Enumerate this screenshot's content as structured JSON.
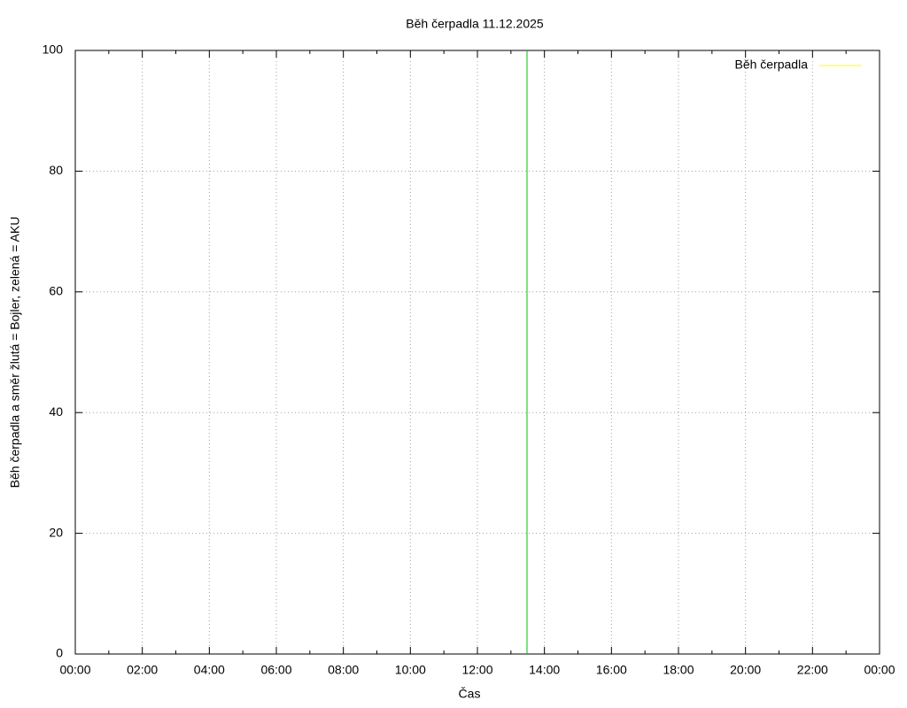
{
  "chart_data": {
    "type": "line",
    "title": "Běh čerpadla 11.12.2025",
    "xlabel": "Čas",
    "ylabel": "Běh čerpadla a směr žlutá = Bojler, zelená = AKU",
    "xlim": [
      0,
      24
    ],
    "ylim": [
      0,
      100
    ],
    "xticks": [
      {
        "value": 0,
        "label": "00:00"
      },
      {
        "value": 2,
        "label": "02:00"
      },
      {
        "value": 4,
        "label": "04:00"
      },
      {
        "value": 6,
        "label": "06:00"
      },
      {
        "value": 8,
        "label": "08:00"
      },
      {
        "value": 10,
        "label": "10:00"
      },
      {
        "value": 12,
        "label": "12:00"
      },
      {
        "value": 14,
        "label": "14:00"
      },
      {
        "value": 16,
        "label": "16:00"
      },
      {
        "value": 18,
        "label": "18:00"
      },
      {
        "value": 20,
        "label": "20:00"
      },
      {
        "value": 22,
        "label": "22:00"
      },
      {
        "value": 24,
        "label": "00:00"
      }
    ],
    "yticks": [
      0,
      20,
      40,
      60,
      80,
      100
    ],
    "grid": true,
    "legend": "upper right",
    "series": [
      {
        "name": "Běh čerpadla",
        "color": "#ffff00",
        "x": [],
        "values": []
      },
      {
        "color": "#00c000",
        "x": [
          13.48,
          13.48
        ],
        "values": [
          0,
          100
        ]
      }
    ]
  }
}
